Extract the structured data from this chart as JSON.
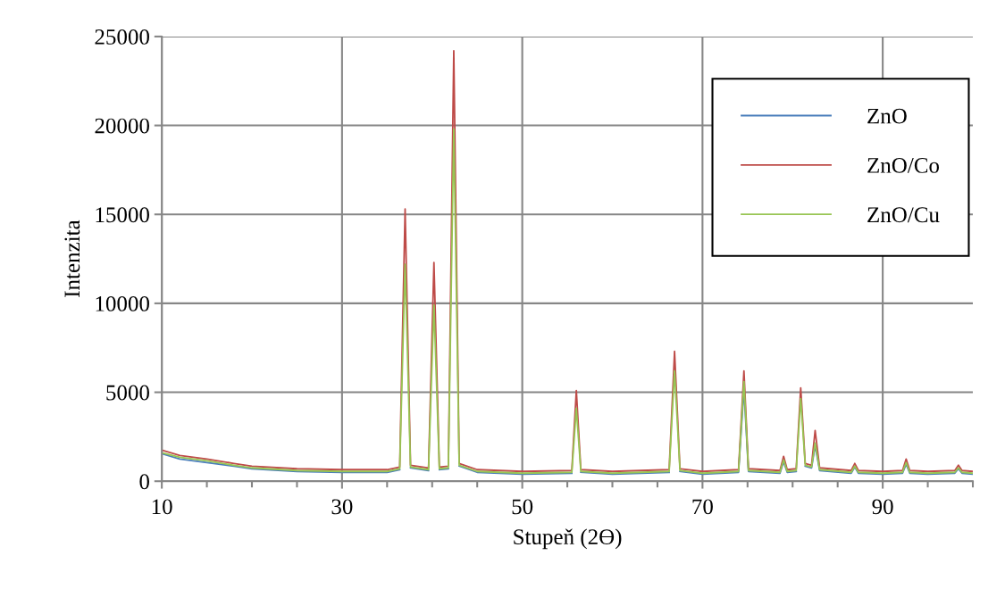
{
  "chart_data": {
    "type": "line",
    "xlabel": "Stupeň (2ϴ)",
    "ylabel": "Intenzita",
    "x": [
      10,
      12,
      15,
      18,
      20,
      25,
      30,
      35,
      36.4,
      37.0,
      37.6,
      39.6,
      40.2,
      40.8,
      41.8,
      42.4,
      43.0,
      45,
      50,
      55.5,
      56.0,
      56.5,
      60,
      66.3,
      66.9,
      67.5,
      70,
      74.0,
      74.6,
      75.1,
      78.6,
      79.0,
      79.4,
      80.4,
      80.9,
      81.4,
      82.1,
      82.5,
      83.0,
      86.5,
      86.9,
      87.3,
      90,
      92.2,
      92.6,
      93.0,
      95,
      98.0,
      98.4,
      98.8,
      100
    ],
    "series": [
      {
        "name": "ZnO",
        "color": "#4a7ebb",
        "values": [
          1550,
          1250,
          1050,
          850,
          700,
          550,
          500,
          500,
          650,
          null,
          750,
          600,
          null,
          650,
          700,
          null,
          850,
          500,
          400,
          450,
          null,
          500,
          400,
          500,
          null,
          550,
          400,
          500,
          5200,
          550,
          450,
          1100,
          500,
          550,
          null,
          850,
          750,
          2000,
          600,
          450,
          800,
          450,
          400,
          450,
          950,
          450,
          400,
          450,
          700,
          450,
          400
        ]
      },
      {
        "name": "ZnO/Co",
        "color": "#be4b48",
        "values": [
          1750,
          1450,
          1250,
          1000,
          850,
          700,
          650,
          650,
          800,
          15300,
          900,
          750,
          12300,
          800,
          850,
          24200,
          1000,
          650,
          550,
          600,
          5100,
          650,
          550,
          650,
          7300,
          700,
          550,
          650,
          6200,
          700,
          600,
          1400,
          650,
          700,
          5250,
          1000,
          900,
          2850,
          750,
          600,
          1000,
          600,
          550,
          600,
          1250,
          600,
          550,
          600,
          900,
          600,
          550
        ]
      },
      {
        "name": "ZnO/Cu",
        "color": "#98c554",
        "values": [
          1600,
          1350,
          1150,
          900,
          750,
          600,
          550,
          550,
          700,
          12200,
          800,
          650,
          9900,
          700,
          750,
          19800,
          900,
          550,
          450,
          500,
          4100,
          550,
          450,
          550,
          6200,
          600,
          450,
          550,
          5600,
          600,
          500,
          1200,
          550,
          600,
          4650,
          900,
          800,
          2150,
          650,
          500,
          850,
          500,
          450,
          500,
          1050,
          500,
          450,
          500,
          750,
          500,
          450
        ]
      }
    ],
    "xlim": [
      10,
      100
    ],
    "xticks": [
      10,
      {
        "value": 15,
        "label": null
      },
      {
        "value": 20,
        "label": null
      },
      {
        "value": 25,
        "label": null
      },
      30,
      {
        "value": 35,
        "label": null
      },
      {
        "value": 40,
        "label": null
      },
      {
        "value": 45,
        "label": null
      },
      50,
      {
        "value": 55,
        "label": null
      },
      {
        "value": 60,
        "label": null
      },
      {
        "value": 65,
        "label": null
      },
      70,
      {
        "value": 75,
        "label": null
      },
      {
        "value": 80,
        "label": null
      },
      {
        "value": 85,
        "label": null
      },
      90,
      {
        "value": 95,
        "label": null
      },
      {
        "value": 100,
        "label": null
      }
    ],
    "ylim": [
      0,
      25000
    ],
    "yticks": [
      0,
      5000,
      10000,
      15000,
      20000,
      25000
    ],
    "grid": true,
    "legend": "top right",
    "line_style": "solid"
  }
}
